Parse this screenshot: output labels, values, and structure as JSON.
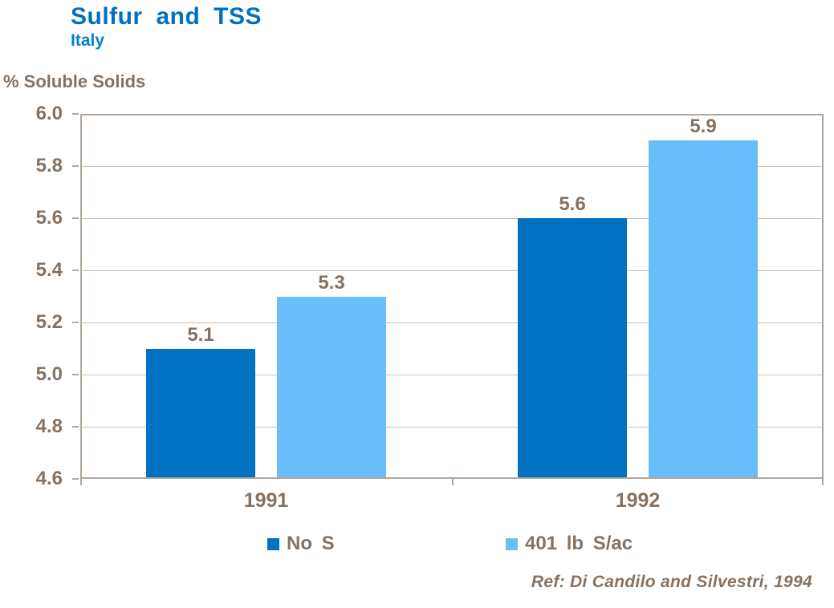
{
  "header": {
    "title": "Sulfur and TSS",
    "subtitle": "Italy"
  },
  "colors": {
    "title_blue": "#0070C0",
    "subtitle_blue": "#0081D5",
    "text_brown": "#857262",
    "axis_line": "#B1A69B",
    "gridline": "#C9BFB4",
    "series_no_s": "#0072C1",
    "series_401": "#69BDFB"
  },
  "chart_data": {
    "type": "bar",
    "title": "Sulfur and TSS",
    "subtitle": "Italy",
    "ylabel": "% Soluble Solids",
    "xlabel": "",
    "categories": [
      "1991",
      "1992"
    ],
    "series": [
      {
        "name": "No S",
        "color": "#0072C1",
        "values": [
          5.1,
          5.6
        ]
      },
      {
        "name": "401 lb S/ac",
        "color": "#69BDFB",
        "values": [
          5.3,
          5.9
        ]
      }
    ],
    "ylim": [
      4.6,
      6.0
    ],
    "ytick_step": 0.2,
    "grid": true,
    "value_labels": true,
    "legend_position": "bottom",
    "annotation": "Ref: Di Candilo and Silvestri, 1994"
  }
}
